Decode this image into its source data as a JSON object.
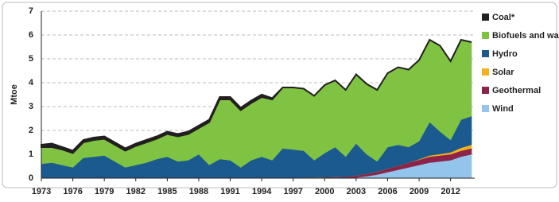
{
  "chart_data": {
    "type": "stacked-area",
    "y_label": "Mtoe",
    "x": [
      1973,
      1974,
      1975,
      1976,
      1977,
      1978,
      1979,
      1980,
      1981,
      1982,
      1983,
      1984,
      1985,
      1986,
      1987,
      1988,
      1989,
      1990,
      1991,
      1992,
      1993,
      1994,
      1995,
      1996,
      1997,
      1998,
      1999,
      2000,
      2001,
      2002,
      2003,
      2004,
      2005,
      2006,
      2007,
      2008,
      2009,
      2010,
      2011,
      2012,
      2013,
      2014
    ],
    "xlim": [
      1973,
      2014.3
    ],
    "xticks": [
      1973,
      1976,
      1979,
      1982,
      1985,
      1988,
      1991,
      1994,
      1997,
      2000,
      2003,
      2006,
      2009,
      2012
    ],
    "ylim": [
      0,
      7
    ],
    "yticks": [
      0,
      1,
      2,
      3,
      4,
      5,
      6,
      7
    ],
    "grid": true,
    "legend": "right",
    "series": [
      {
        "name": "Coal*",
        "color": "#231f20",
        "values": [
          0.1,
          0.15,
          0.1,
          0.1,
          0.1,
          0.1,
          0.1,
          0.1,
          0.1,
          0.1,
          0.1,
          0.1,
          0.1,
          0.1,
          0.1,
          0.1,
          0.1,
          0.1,
          0.1,
          0.1,
          0.1,
          0.1,
          0.05,
          0,
          0,
          0,
          0,
          0,
          0,
          0,
          0,
          0,
          0,
          0,
          0,
          0,
          0,
          0,
          0,
          0,
          0,
          0
        ]
      },
      {
        "name": "Biofuels and waste",
        "color": "#80c342",
        "values": [
          0.7,
          0.65,
          0.65,
          0.6,
          0.65,
          0.7,
          0.7,
          0.7,
          0.7,
          0.8,
          0.85,
          0.85,
          0.95,
          1.05,
          1.1,
          1.1,
          1.8,
          2.5,
          2.55,
          2.4,
          2.4,
          2.5,
          2.55,
          2.55,
          2.6,
          2.6,
          2.7,
          2.85,
          2.8,
          2.8,
          2.9,
          2.95,
          3.0,
          3.1,
          3.25,
          3.25,
          3.4,
          3.45,
          3.6,
          3.3,
          3.35,
          3.1
        ]
      },
      {
        "name": "Hydro",
        "color": "#1b5a8f",
        "values": [
          0.6,
          0.65,
          0.55,
          0.45,
          0.85,
          0.9,
          0.95,
          0.7,
          0.45,
          0.55,
          0.65,
          0.8,
          0.9,
          0.7,
          0.75,
          1.0,
          0.55,
          0.8,
          0.75,
          0.45,
          0.75,
          0.9,
          0.75,
          1.25,
          1.18,
          1.12,
          0.72,
          1.01,
          1.25,
          0.84,
          1.34,
          0.82,
          0.43,
          0.9,
          0.88,
          0.65,
          0.76,
          1.4,
          0.94,
          0.52,
          1.18,
          1.2
        ]
      },
      {
        "name": "Solar",
        "color": "#f6b21b",
        "values": [
          0,
          0,
          0,
          0,
          0,
          0,
          0,
          0,
          0,
          0,
          0,
          0,
          0,
          0,
          0,
          0,
          0,
          0,
          0,
          0,
          0,
          0,
          0,
          0,
          0,
          0,
          0,
          0,
          0,
          0,
          0,
          0,
          0,
          0,
          0,
          0,
          0.02,
          0.05,
          0.06,
          0.08,
          0.12,
          0.15
        ]
      },
      {
        "name": "Geothermal",
        "color": "#8c2449",
        "values": [
          0,
          0,
          0,
          0,
          0,
          0,
          0,
          0,
          0,
          0,
          0,
          0,
          0,
          0,
          0,
          0,
          0,
          0,
          0,
          0,
          0,
          0,
          0,
          0,
          0.02,
          0.03,
          0.03,
          0.04,
          0.05,
          0.06,
          0.08,
          0.1,
          0.12,
          0.15,
          0.17,
          0.2,
          0.22,
          0.25,
          0.25,
          0.25,
          0.25,
          0.25
        ]
      },
      {
        "name": "Wind",
        "color": "#93c5ec",
        "values": [
          0,
          0,
          0,
          0,
          0,
          0,
          0,
          0,
          0,
          0,
          0,
          0,
          0,
          0,
          0,
          0,
          0,
          0,
          0,
          0,
          0,
          0,
          0,
          0,
          0,
          0,
          0,
          0,
          0,
          0,
          0.03,
          0.08,
          0.15,
          0.25,
          0.35,
          0.45,
          0.55,
          0.65,
          0.7,
          0.75,
          0.9,
          1.0
        ]
      }
    ]
  }
}
